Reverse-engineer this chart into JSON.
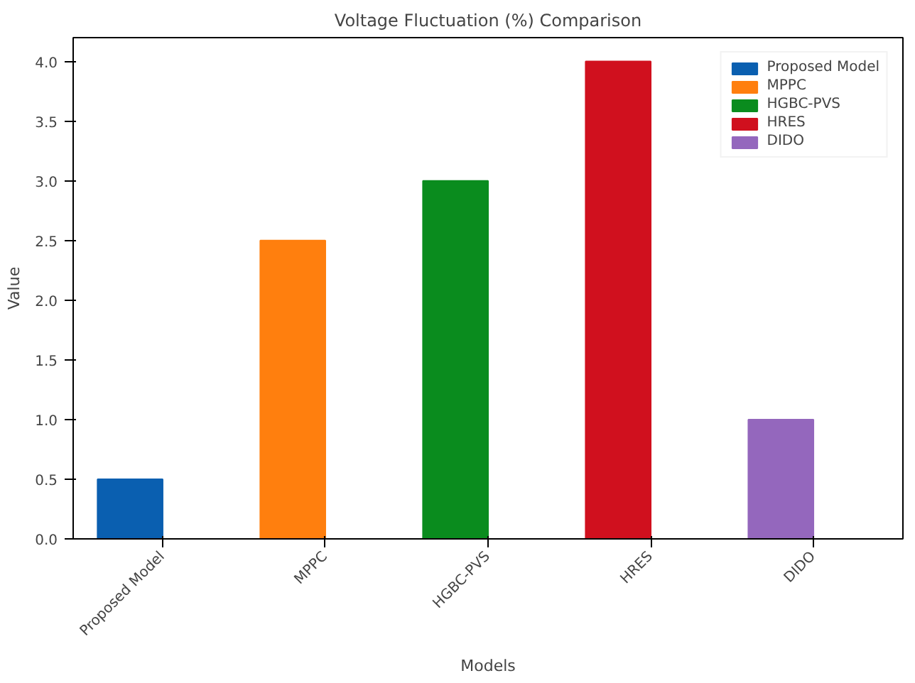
{
  "chart_data": {
    "type": "bar",
    "title": "Voltage Fluctuation (%) Comparison",
    "xlabel": "Models",
    "ylabel": "Value",
    "categories": [
      "Proposed Model",
      "MPPC",
      "HGBC-PVS",
      "HRES",
      "DIDO"
    ],
    "series": [
      {
        "name": "Proposed Model",
        "color": "#0a5fb0",
        "values": [
          0.5,
          null,
          null,
          null,
          null
        ]
      },
      {
        "name": "MPPC",
        "color": "#ff7f0e",
        "values": [
          null,
          2.5,
          null,
          null,
          null
        ]
      },
      {
        "name": "HGBC-PVS",
        "color": "#0a8c1e",
        "values": [
          null,
          null,
          3.0,
          null,
          null
        ]
      },
      {
        "name": "HRES",
        "color": "#d0101e",
        "values": [
          null,
          null,
          null,
          4.0,
          null
        ]
      },
      {
        "name": "DIDO",
        "color": "#9467bd",
        "values": [
          null,
          null,
          null,
          null,
          1.0
        ]
      }
    ],
    "ylim": [
      0,
      4.2
    ],
    "yticks": [
      {
        "value": 0,
        "label": "0.0"
      },
      {
        "value": 0.5,
        "label": "0.5"
      },
      {
        "value": 1,
        "label": "1.0"
      },
      {
        "value": 1.5,
        "label": "1.5"
      },
      {
        "value": 2,
        "label": "2.0"
      },
      {
        "value": 2.5,
        "label": "2.5"
      },
      {
        "value": 3,
        "label": "3.0"
      },
      {
        "value": 3.5,
        "label": "3.5"
      },
      {
        "value": 4,
        "label": "4.0"
      }
    ],
    "grid": false,
    "legend": "top right"
  }
}
